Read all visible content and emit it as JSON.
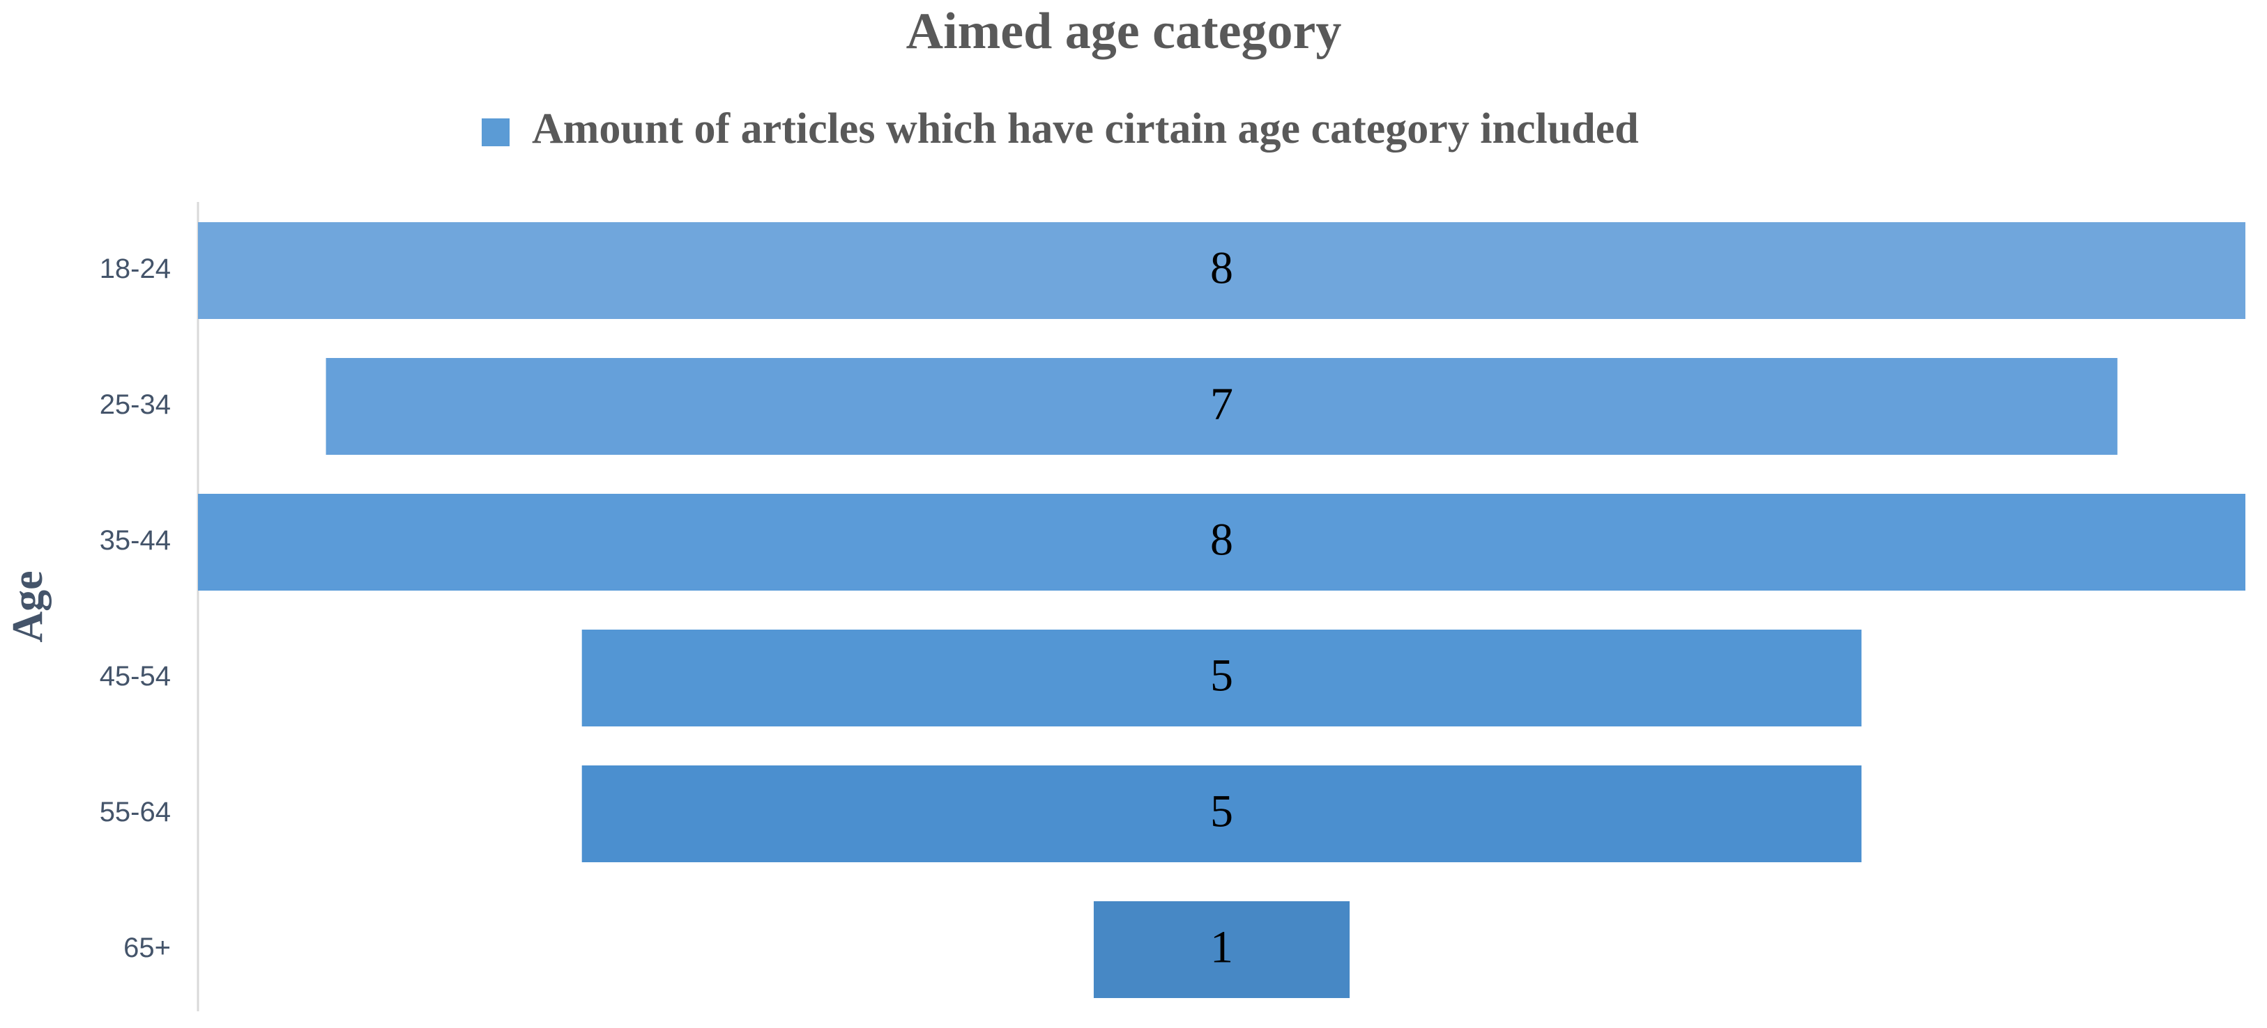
{
  "chart_data": {
    "type": "funnel",
    "title": "Aimed age category",
    "y_label": "Age",
    "categories": [
      "18-24",
      "25-34",
      "35-44",
      "45-54",
      "55-64",
      "65+"
    ],
    "series": [
      {
        "name": "Amount of articles which have cirtain age category included",
        "color": "#5b9bd5",
        "colors": [
          "#70a6dc",
          "#65a0da",
          "#5b9bd8",
          "#5396d4",
          "#4b8fcf",
          "#4788c5"
        ],
        "values": [
          8,
          7,
          8,
          5,
          5,
          1
        ]
      }
    ],
    "legend": "top"
  }
}
